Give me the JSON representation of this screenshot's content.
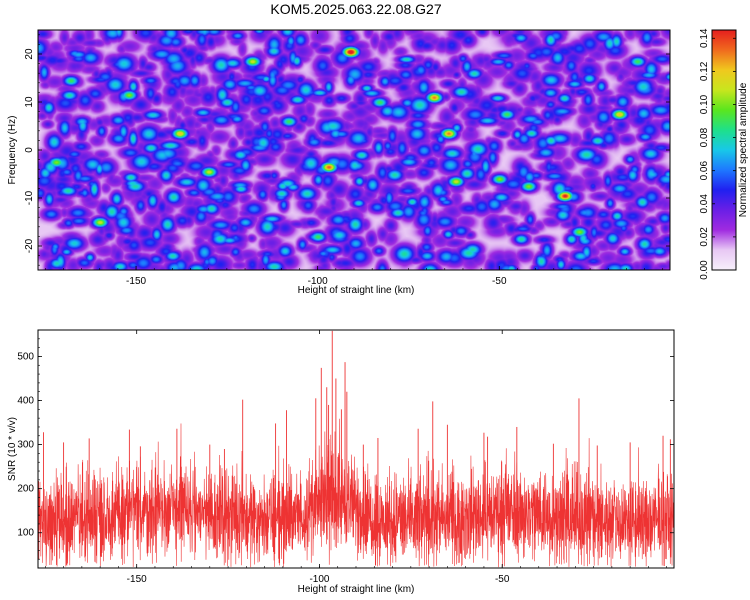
{
  "title": "KOM5.2025.063.22.08.G27",
  "colors": {
    "line": "#ee3333",
    "frame": "#000000",
    "colormap": [
      "#f7f0fb",
      "#e8c8f4",
      "#a02be0",
      "#6a1fe6",
      "#2020f0",
      "#1e78ff",
      "#18c8e8",
      "#1ee08a",
      "#5ae61e",
      "#c8e61e",
      "#f0c81e",
      "#f06a1e",
      "#e61e1e"
    ]
  },
  "chart_data": [
    {
      "type": "heatmap",
      "title": "KOM5.2025.063.22.08.G27",
      "xlabel": "Height of straight line (km)",
      "ylabel": "Frequency (Hz)",
      "xlim": [
        -177,
        -3
      ],
      "ylim": [
        -25,
        25
      ],
      "x_ticks": [
        -150,
        -100,
        -50
      ],
      "y_ticks": [
        -20,
        -10,
        0,
        10,
        20
      ],
      "colorbar": {
        "label": "Normalized spectral amplitude",
        "range": [
          0,
          0.145
        ],
        "ticks": [
          "0.00",
          "0.02",
          "0.04",
          "0.06",
          "0.08",
          "0.10",
          "0.12",
          "0.14"
        ]
      },
      "peaks": [
        {
          "x": -91,
          "y": 20.5,
          "v": 0.145
        },
        {
          "x": -32,
          "y": -9.5,
          "v": 0.135
        },
        {
          "x": -97,
          "y": -3.5,
          "v": 0.125
        },
        {
          "x": -64,
          "y": 3.5,
          "v": 0.12
        },
        {
          "x": -68,
          "y": 11,
          "v": 0.12
        },
        {
          "x": -138,
          "y": 3.5,
          "v": 0.11
        },
        {
          "x": -17,
          "y": 7.5,
          "v": 0.11
        },
        {
          "x": -160,
          "y": -15,
          "v": 0.1
        },
        {
          "x": -130,
          "y": -4.5,
          "v": 0.1
        },
        {
          "x": -62,
          "y": -6.5,
          "v": 0.1
        },
        {
          "x": -118,
          "y": 18.5,
          "v": 0.1
        },
        {
          "x": -172,
          "y": -2.5,
          "v": 0.09
        },
        {
          "x": -42,
          "y": -7.5,
          "v": 0.09
        },
        {
          "x": -50,
          "y": -6,
          "v": 0.09
        },
        {
          "x": -28,
          "y": -17,
          "v": 0.09
        },
        {
          "x": -152,
          "y": 11.5,
          "v": 0.09
        },
        {
          "x": -12,
          "y": 18.5,
          "v": 0.08
        },
        {
          "x": -108,
          "y": 6,
          "v": 0.08
        },
        {
          "x": -83,
          "y": 10,
          "v": 0.08
        },
        {
          "x": -168,
          "y": 14.5,
          "v": 0.08
        },
        {
          "x": -48,
          "y": 7.5,
          "v": 0.08
        },
        {
          "x": -100,
          "y": -18,
          "v": 0.08
        },
        {
          "x": -78,
          "y": -13,
          "v": 0.07
        },
        {
          "x": -140,
          "y": -22,
          "v": 0.07
        },
        {
          "x": -23,
          "y": 2,
          "v": 0.07
        },
        {
          "x": -125,
          "y": 10,
          "v": 0.07
        },
        {
          "x": -110,
          "y": -9,
          "v": 0.07
        },
        {
          "x": -57,
          "y": 16,
          "v": 0.07
        },
        {
          "x": -88,
          "y": -1,
          "v": 0.07
        },
        {
          "x": -146,
          "y": 0.5,
          "v": 0.07
        },
        {
          "x": -6,
          "y": -21,
          "v": 0.06
        },
        {
          "x": -36,
          "y": 12,
          "v": 0.06
        },
        {
          "x": -165,
          "y": 6,
          "v": 0.06
        },
        {
          "x": -120,
          "y": -15,
          "v": 0.06
        },
        {
          "x": -70,
          "y": -22,
          "v": 0.06
        },
        {
          "x": -8,
          "y": -5,
          "v": 0.06
        }
      ]
    },
    {
      "type": "line",
      "xlabel": "Height of straight line (km)",
      "ylabel": "SNR (10 * v/v)",
      "xlim": [
        -177,
        -3
      ],
      "ylim": [
        20,
        560
      ],
      "x_ticks": [
        -150,
        -100,
        -50
      ],
      "y_ticks": [
        100,
        200,
        300,
        400,
        500
      ],
      "x_step_km": 0.06,
      "baseline_mean": 125,
      "noise_amplitude": 75,
      "bumps": [
        {
          "x": -96,
          "width": 8,
          "height": 55
        },
        {
          "x": -140,
          "width": 22,
          "height": 25
        },
        {
          "x": -48,
          "width": 18,
          "height": 20
        }
      ],
      "spikes": [
        {
          "x": -96.5,
          "y": 558
        },
        {
          "x": -99.5,
          "y": 474
        },
        {
          "x": -93,
          "y": 487
        },
        {
          "x": -95.5,
          "y": 450
        },
        {
          "x": -92.5,
          "y": 420
        },
        {
          "x": -98,
          "y": 430
        },
        {
          "x": -101,
          "y": 405
        },
        {
          "x": -97.5,
          "y": 390
        },
        {
          "x": -94,
          "y": 380
        },
        {
          "x": -121,
          "y": 402
        },
        {
          "x": -29,
          "y": 405
        },
        {
          "x": -69,
          "y": 398
        },
        {
          "x": -109,
          "y": 378
        },
        {
          "x": -112,
          "y": 348
        },
        {
          "x": -139,
          "y": 336
        },
        {
          "x": -152,
          "y": 334
        },
        {
          "x": -175.5,
          "y": 328
        },
        {
          "x": -65,
          "y": 345
        },
        {
          "x": -73,
          "y": 336
        },
        {
          "x": -55,
          "y": 327
        },
        {
          "x": -46,
          "y": 340
        },
        {
          "x": -54,
          "y": 318
        },
        {
          "x": -163,
          "y": 314
        },
        {
          "x": -170,
          "y": 305
        },
        {
          "x": -130,
          "y": 300
        },
        {
          "x": -15,
          "y": 305
        },
        {
          "x": -6,
          "y": 320
        },
        {
          "x": -24,
          "y": 298
        },
        {
          "x": -36,
          "y": 302
        },
        {
          "x": -84,
          "y": 315
        },
        {
          "x": -88,
          "y": 300
        },
        {
          "x": -149,
          "y": 296
        },
        {
          "x": -126,
          "y": 290
        },
        {
          "x": -4,
          "y": 312
        }
      ]
    }
  ]
}
